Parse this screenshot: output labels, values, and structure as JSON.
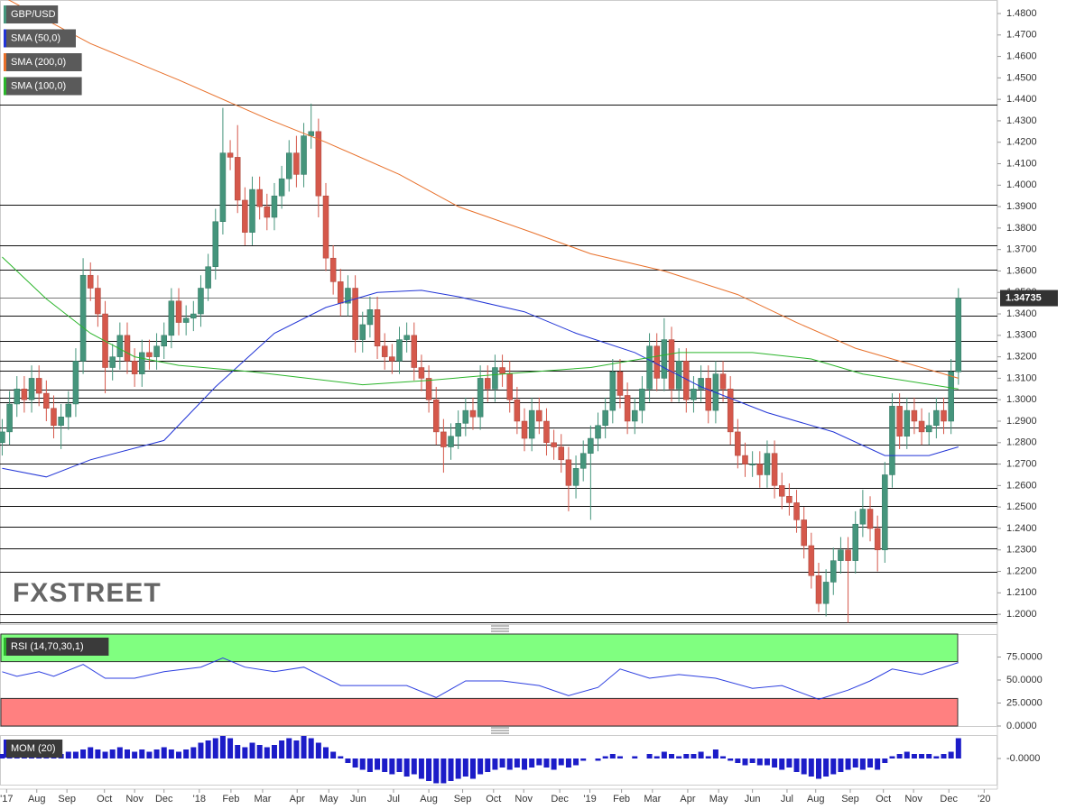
{
  "chart_data": [
    {
      "type": "candlestick",
      "name": "GBP/USD",
      "up_color": "#45957c",
      "down_color": "#d5584b",
      "watermark": "FXSTREET",
      "open": [
        1.28,
        1.285,
        1.298,
        1.305,
        1.3,
        1.31,
        1.303,
        1.296,
        1.288,
        1.292,
        1.298,
        1.318,
        1.358,
        1.352,
        1.34,
        1.315,
        1.32,
        1.33,
        1.318,
        1.312,
        1.322,
        1.32,
        1.325,
        1.33,
        1.346,
        1.336,
        1.338,
        1.34,
        1.352,
        1.362,
        1.383,
        1.415,
        1.413,
        1.393,
        1.378,
        1.398,
        1.39,
        1.385,
        1.395,
        1.403,
        1.415,
        1.405,
        1.423,
        1.425,
        1.395,
        1.366,
        1.355,
        1.345,
        1.352,
        1.328,
        1.335,
        1.342,
        1.325,
        1.32,
        1.318,
        1.328,
        1.33,
        1.315,
        1.31,
        1.3,
        1.285,
        1.278,
        1.283,
        1.289,
        1.295,
        1.292,
        1.31,
        1.305,
        1.315,
        1.312,
        1.3,
        1.29,
        1.282,
        1.295,
        1.29,
        1.28,
        1.278,
        1.272,
        1.26,
        1.268,
        1.275,
        1.282,
        1.288,
        1.295,
        1.313,
        1.302,
        1.29,
        1.295,
        1.305,
        1.325,
        1.31,
        1.328,
        1.305,
        1.318,
        1.3,
        1.305,
        1.31,
        1.295,
        1.312,
        1.305,
        1.285,
        1.274,
        1.27,
        1.27,
        1.265,
        1.275,
        1.26,
        1.255,
        1.252,
        1.244,
        1.232,
        1.218,
        1.205,
        1.215,
        1.225,
        1.23,
        1.225,
        1.242,
        1.249,
        1.24,
        1.23,
        1.265,
        1.297,
        1.283,
        1.295,
        1.29,
        1.285,
        1.288,
        1.295,
        1.29,
        1.313
      ],
      "high": [
        1.291,
        1.304,
        1.311,
        1.311,
        1.316,
        1.316,
        1.309,
        1.302,
        1.298,
        1.304,
        1.324,
        1.366,
        1.364,
        1.358,
        1.346,
        1.326,
        1.336,
        1.336,
        1.324,
        1.328,
        1.328,
        1.331,
        1.336,
        1.352,
        1.352,
        1.344,
        1.346,
        1.358,
        1.368,
        1.389,
        1.436,
        1.421,
        1.428,
        1.399,
        1.404,
        1.404,
        1.396,
        1.401,
        1.409,
        1.421,
        1.423,
        1.429,
        1.438,
        1.431,
        1.401,
        1.372,
        1.361,
        1.358,
        1.358,
        1.341,
        1.348,
        1.348,
        1.331,
        1.326,
        1.334,
        1.336,
        1.336,
        1.321,
        1.316,
        1.306,
        1.291,
        1.289,
        1.295,
        1.301,
        1.301,
        1.316,
        1.316,
        1.321,
        1.321,
        1.318,
        1.306,
        1.296,
        1.301,
        1.301,
        1.296,
        1.286,
        1.284,
        1.278,
        1.274,
        1.281,
        1.288,
        1.294,
        1.301,
        1.319,
        1.319,
        1.308,
        1.301,
        1.311,
        1.331,
        1.331,
        1.338,
        1.334,
        1.324,
        1.324,
        1.311,
        1.316,
        1.316,
        1.318,
        1.318,
        1.311,
        1.291,
        1.28,
        1.276,
        1.276,
        1.281,
        1.281,
        1.266,
        1.261,
        1.258,
        1.25,
        1.238,
        1.224,
        1.221,
        1.231,
        1.236,
        1.236,
        1.248,
        1.258,
        1.255,
        1.246,
        1.271,
        1.303,
        1.303,
        1.301,
        1.301,
        1.296,
        1.294,
        1.301,
        1.301,
        1.319,
        1.352
      ],
      "low": [
        1.274,
        1.279,
        1.292,
        1.294,
        1.294,
        1.297,
        1.29,
        1.282,
        1.277,
        1.286,
        1.292,
        1.312,
        1.346,
        1.334,
        1.303,
        1.309,
        1.314,
        1.312,
        1.306,
        1.306,
        1.314,
        1.314,
        1.319,
        1.324,
        1.33,
        1.33,
        1.332,
        1.334,
        1.346,
        1.356,
        1.377,
        1.407,
        1.387,
        1.372,
        1.372,
        1.384,
        1.379,
        1.379,
        1.389,
        1.397,
        1.399,
        1.399,
        1.417,
        1.385,
        1.36,
        1.349,
        1.339,
        1.339,
        1.322,
        1.322,
        1.329,
        1.319,
        1.314,
        1.312,
        1.312,
        1.322,
        1.309,
        1.304,
        1.294,
        1.279,
        1.266,
        1.272,
        1.277,
        1.283,
        1.286,
        1.286,
        1.299,
        1.299,
        1.306,
        1.294,
        1.284,
        1.276,
        1.276,
        1.284,
        1.274,
        1.272,
        1.266,
        1.248,
        1.254,
        1.262,
        1.244,
        1.276,
        1.282,
        1.289,
        1.296,
        1.284,
        1.284,
        1.289,
        1.299,
        1.304,
        1.304,
        1.299,
        1.299,
        1.294,
        1.294,
        1.299,
        1.289,
        1.289,
        1.299,
        1.279,
        1.268,
        1.264,
        1.264,
        1.259,
        1.259,
        1.254,
        1.249,
        1.246,
        1.238,
        1.226,
        1.212,
        1.201,
        1.199,
        1.209,
        1.219,
        1.196,
        1.219,
        1.236,
        1.234,
        1.22,
        1.224,
        1.259,
        1.277,
        1.277,
        1.284,
        1.279,
        1.279,
        1.282,
        1.284,
        1.284,
        1.307
      ],
      "close": [
        1.285,
        1.298,
        1.305,
        1.3,
        1.31,
        1.303,
        1.296,
        1.288,
        1.292,
        1.298,
        1.318,
        1.358,
        1.352,
        1.34,
        1.315,
        1.32,
        1.33,
        1.318,
        1.312,
        1.322,
        1.32,
        1.325,
        1.33,
        1.346,
        1.336,
        1.338,
        1.34,
        1.352,
        1.362,
        1.383,
        1.415,
        1.413,
        1.393,
        1.378,
        1.398,
        1.39,
        1.385,
        1.395,
        1.403,
        1.415,
        1.405,
        1.423,
        1.425,
        1.395,
        1.366,
        1.355,
        1.345,
        1.352,
        1.328,
        1.335,
        1.342,
        1.325,
        1.32,
        1.318,
        1.328,
        1.33,
        1.315,
        1.31,
        1.3,
        1.285,
        1.278,
        1.283,
        1.289,
        1.295,
        1.292,
        1.31,
        1.305,
        1.315,
        1.312,
        1.3,
        1.29,
        1.282,
        1.295,
        1.29,
        1.28,
        1.278,
        1.272,
        1.26,
        1.268,
        1.275,
        1.282,
        1.288,
        1.295,
        1.313,
        1.302,
        1.29,
        1.295,
        1.305,
        1.325,
        1.31,
        1.328,
        1.305,
        1.318,
        1.3,
        1.305,
        1.31,
        1.295,
        1.312,
        1.305,
        1.285,
        1.274,
        1.27,
        1.27,
        1.265,
        1.275,
        1.26,
        1.255,
        1.252,
        1.244,
        1.232,
        1.218,
        1.205,
        1.215,
        1.225,
        1.23,
        1.225,
        1.242,
        1.249,
        1.24,
        1.23,
        1.265,
        1.297,
        1.283,
        1.295,
        1.29,
        1.285,
        1.288,
        1.295,
        1.29,
        1.313,
        1.3473
      ],
      "overlays": [
        {
          "name": "SMA (50,0)",
          "color": "#2235d6",
          "x": [
            0,
            6,
            12,
            22,
            29,
            37,
            44,
            51,
            57,
            62,
            71,
            78,
            86,
            95,
            104,
            113,
            120,
            126,
            130
          ],
          "values": [
            1.268,
            1.264,
            1.272,
            1.281,
            1.306,
            1.331,
            1.343,
            1.35,
            1.351,
            1.348,
            1.341,
            1.331,
            1.322,
            1.306,
            1.294,
            1.285,
            1.274,
            1.274,
            1.278
          ]
        },
        {
          "name": "SMA (200,0)",
          "color": "#e8702a",
          "x": [
            0,
            12,
            24,
            36,
            44,
            54,
            62,
            72,
            80,
            90,
            100,
            108,
            116,
            124,
            130
          ],
          "values": [
            1.488,
            1.466,
            1.449,
            1.431,
            1.42,
            1.405,
            1.39,
            1.378,
            1.368,
            1.36,
            1.349,
            1.336,
            1.324,
            1.316,
            1.31
          ]
        },
        {
          "name": "SMA (100,0)",
          "color": "#2bb52b",
          "x": [
            0,
            6,
            12,
            18,
            24,
            34,
            49,
            58,
            68,
            80,
            92,
            102,
            110,
            117,
            130
          ],
          "values": [
            1.3665,
            1.347,
            1.331,
            1.32,
            1.316,
            1.313,
            1.307,
            1.309,
            1.312,
            1.315,
            1.322,
            1.322,
            1.319,
            1.312,
            1.305
          ]
        }
      ],
      "levels": [
        1.4376,
        1.391,
        1.372,
        1.3607,
        1.3392,
        1.3274,
        1.3182,
        1.3136,
        1.3047,
        1.3009,
        1.2988,
        1.287,
        1.279,
        1.2702,
        1.2589,
        1.2505,
        1.2408,
        1.2307,
        1.2198,
        1.2,
        1.1962
      ],
      "last_price": 1.34735,
      "ylim": [
        1.195,
        1.4863
      ],
      "yticks": [
        {
          "value": 1.48,
          "label": "1.4800"
        },
        {
          "value": 1.47,
          "label": "1.4700"
        },
        {
          "value": 1.46,
          "label": "1.4600"
        },
        {
          "value": 1.45,
          "label": "1.4500"
        },
        {
          "value": 1.44,
          "label": "1.4400"
        },
        {
          "value": 1.43,
          "label": "1.4300"
        },
        {
          "value": 1.42,
          "label": "1.4200"
        },
        {
          "value": 1.41,
          "label": "1.4100"
        },
        {
          "value": 1.4,
          "label": "1.4000"
        },
        {
          "value": 1.39,
          "label": "1.3900"
        },
        {
          "value": 1.38,
          "label": "1.3800"
        },
        {
          "value": 1.37,
          "label": "1.3700"
        },
        {
          "value": 1.36,
          "label": "1.3600"
        },
        {
          "value": 1.35,
          "label": "1.3500"
        },
        {
          "value": 1.34,
          "label": "1.3400"
        },
        {
          "value": 1.33,
          "label": "1.3300"
        },
        {
          "value": 1.32,
          "label": "1.3200"
        },
        {
          "value": 1.31,
          "label": "1.3100"
        },
        {
          "value": 1.3,
          "label": "1.3000"
        },
        {
          "value": 1.29,
          "label": "1.2900"
        },
        {
          "value": 1.28,
          "label": "1.2800"
        },
        {
          "value": 1.27,
          "label": "1.2700"
        },
        {
          "value": 1.26,
          "label": "1.2600"
        },
        {
          "value": 1.25,
          "label": "1.2500"
        },
        {
          "value": 1.24,
          "label": "1.2400"
        },
        {
          "value": 1.23,
          "label": "1.2300"
        },
        {
          "value": 1.22,
          "label": "1.2200"
        },
        {
          "value": 1.21,
          "label": "1.2100"
        },
        {
          "value": 1.2,
          "label": "1.2000"
        }
      ],
      "xlim": [
        -0.3,
        135.3
      ],
      "xticks": [
        {
          "value": 0.6,
          "label": "'17"
        },
        {
          "value": 4.7,
          "label": "Aug"
        },
        {
          "value": 8.8,
          "label": "Sep"
        },
        {
          "value": 13.9,
          "label": "Oct"
        },
        {
          "value": 18.0,
          "label": "Nov"
        },
        {
          "value": 22.0,
          "label": "Dec"
        },
        {
          "value": 26.8,
          "label": "'18"
        },
        {
          "value": 31.1,
          "label": "Feb"
        },
        {
          "value": 35.4,
          "label": "Mar"
        },
        {
          "value": 40.1,
          "label": "Apr"
        },
        {
          "value": 44.4,
          "label": "May"
        },
        {
          "value": 48.4,
          "label": "Jun"
        },
        {
          "value": 53.2,
          "label": "Jul"
        },
        {
          "value": 58.0,
          "label": "Aug"
        },
        {
          "value": 62.6,
          "label": "Sep"
        },
        {
          "value": 66.8,
          "label": "Oct"
        },
        {
          "value": 70.9,
          "label": "Nov"
        },
        {
          "value": 75.8,
          "label": "Dec"
        },
        {
          "value": 79.9,
          "label": "'19"
        },
        {
          "value": 84.2,
          "label": "Feb"
        },
        {
          "value": 88.4,
          "label": "Mar"
        },
        {
          "value": 93.2,
          "label": "Apr"
        },
        {
          "value": 97.4,
          "label": "May"
        },
        {
          "value": 102.0,
          "label": "Jun"
        },
        {
          "value": 106.7,
          "label": "Jul"
        },
        {
          "value": 110.6,
          "label": "Aug"
        },
        {
          "value": 115.3,
          "label": "Sep"
        },
        {
          "value": 119.8,
          "label": "Oct"
        },
        {
          "value": 123.9,
          "label": "Nov"
        },
        {
          "value": 128.7,
          "label": "Dec"
        },
        {
          "value": 133.5,
          "label": "'20"
        }
      ]
    },
    {
      "type": "line",
      "name": "RSI (14,70,30,1)",
      "color": "#2d3fe0",
      "overbought": 70,
      "oversold": 30,
      "x": [
        0,
        2,
        5,
        7,
        11,
        14,
        18,
        22,
        27,
        30,
        33,
        37,
        41,
        46,
        51,
        55,
        59,
        63,
        68,
        73,
        77,
        81,
        84,
        88,
        92,
        97,
        102,
        106,
        111,
        115,
        118,
        121,
        125,
        130
      ],
      "values": [
        59,
        54,
        59,
        54,
        67,
        52,
        52,
        59,
        64,
        74,
        64,
        59,
        64,
        44,
        44,
        44,
        31,
        49,
        49,
        44,
        33,
        42,
        62,
        52,
        56,
        52,
        41,
        44,
        29,
        39,
        49,
        62,
        56,
        69
      ],
      "ylim": [
        0,
        100
      ],
      "yticks": [
        {
          "value": 0,
          "label": "0.0000"
        },
        {
          "value": 25,
          "label": "25.0000"
        },
        {
          "value": 50,
          "label": "50.0000"
        },
        {
          "value": 75,
          "label": "75.0000"
        }
      ]
    },
    {
      "type": "bar",
      "name": "MOM (20)",
      "color": "#1c1cc8",
      "values": [
        0.02,
        0.03,
        0.02,
        0.03,
        0.02,
        0.03,
        0.02,
        0.01,
        0.02,
        0.03,
        0.03,
        0.04,
        0.05,
        0.04,
        0.03,
        0.04,
        0.05,
        0.04,
        0.03,
        0.04,
        0.03,
        0.04,
        0.05,
        0.04,
        0.03,
        0.04,
        0.05,
        0.07,
        0.08,
        0.09,
        0.1,
        0.09,
        0.06,
        0.05,
        0.07,
        0.06,
        0.05,
        0.06,
        0.08,
        0.09,
        0.08,
        0.1,
        0.09,
        0.07,
        0.05,
        0.03,
        0.01,
        -0.02,
        -0.04,
        -0.05,
        -0.06,
        -0.05,
        -0.06,
        -0.07,
        -0.06,
        -0.08,
        -0.07,
        -0.09,
        -0.1,
        -0.11,
        -0.11,
        -0.1,
        -0.09,
        -0.08,
        -0.09,
        -0.07,
        -0.06,
        -0.05,
        -0.04,
        -0.05,
        -0.04,
        -0.05,
        -0.04,
        -0.03,
        -0.04,
        -0.05,
        -0.03,
        -0.04,
        -0.03,
        -0.01,
        0.0,
        -0.01,
        0.01,
        0.02,
        0.01,
        0.0,
        0.01,
        0.0,
        0.02,
        0.01,
        0.03,
        0.02,
        0.01,
        0.02,
        0.02,
        0.03,
        0.01,
        0.04,
        0.01,
        -0.01,
        -0.02,
        -0.03,
        -0.02,
        -0.03,
        -0.03,
        -0.04,
        -0.05,
        -0.04,
        -0.06,
        -0.07,
        -0.08,
        -0.09,
        -0.08,
        -0.07,
        -0.06,
        -0.05,
        -0.04,
        -0.05,
        -0.04,
        -0.05,
        -0.02,
        0.01,
        0.02,
        0.03,
        0.02,
        0.02,
        0.02,
        0.01,
        0.02,
        0.03,
        0.09
      ],
      "ylim": [
        -0.116,
        0.104
      ],
      "yticks": [
        {
          "value": 0,
          "label": "-0.0000"
        }
      ]
    }
  ]
}
